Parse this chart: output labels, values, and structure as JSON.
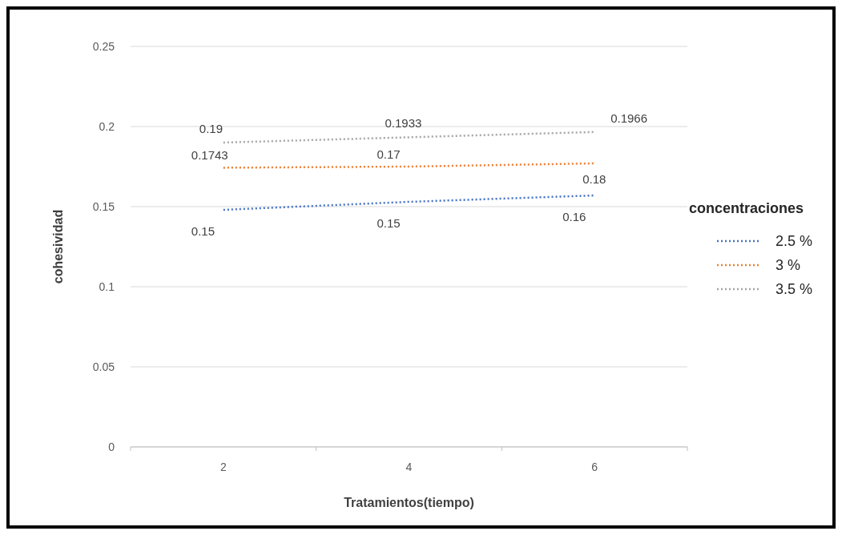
{
  "chart_data": {
    "type": "line",
    "xlabel": "Tratamientos(tiempo)",
    "ylabel": "cohesividad",
    "legend_title": "concentraciones",
    "categories": [
      "2",
      "4",
      "6"
    ],
    "series": [
      {
        "name": "2.5 %",
        "color": "#4472c4",
        "values": [
          0.148,
          0.153,
          0.157
        ],
        "value_labels": [
          "0.15",
          "0.15",
          "0.16"
        ]
      },
      {
        "name": "3 %",
        "color": "#ed7d31",
        "values": [
          0.1743,
          0.175,
          0.177
        ],
        "value_labels": [
          "0.1743",
          "0.17",
          "0.18"
        ]
      },
      {
        "name": "3.5 %",
        "color": "#a5a5a5",
        "values": [
          0.19,
          0.1933,
          0.1966
        ],
        "value_labels": [
          "0.19",
          "0.1933",
          "0.1966"
        ]
      }
    ],
    "ylim": [
      0,
      0.25
    ],
    "yticks": [
      0,
      0.05,
      0.1,
      0.15,
      0.2,
      0.25
    ],
    "grid": "y",
    "legend": "right",
    "line_style": "dotted",
    "marker": "none"
  }
}
